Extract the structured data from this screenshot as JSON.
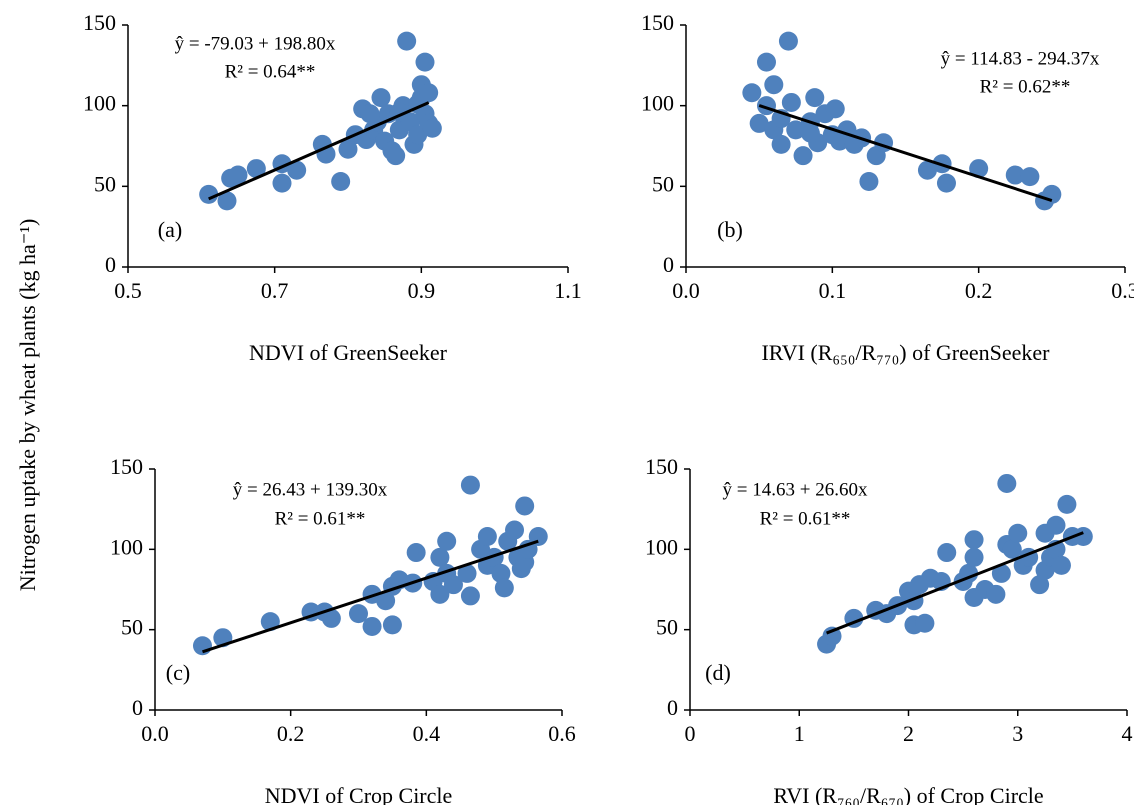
{
  "ylabel": "Nitrogen uptake by wheat plants (kg ha⁻¹)",
  "chart_data": [
    {
      "type": "scatter",
      "xlabel": "NDVI of GreenSeeker",
      "equation": "ŷ = -79.03 + 198.80x",
      "r2": "R² = 0.64**",
      "panel_label": "(a)",
      "xlim": [
        0.5,
        1.1
      ],
      "ylim": [
        0,
        150
      ],
      "xticks": [
        0.5,
        0.7,
        0.9,
        1.1
      ],
      "yticks": [
        0,
        50,
        100,
        150
      ],
      "color": "#4f81bd",
      "x": [
        0.61,
        0.635,
        0.64,
        0.65,
        0.675,
        0.71,
        0.71,
        0.73,
        0.765,
        0.77,
        0.79,
        0.8,
        0.81,
        0.82,
        0.825,
        0.835,
        0.84,
        0.845,
        0.85,
        0.855,
        0.86,
        0.865,
        0.87,
        0.875,
        0.88,
        0.885,
        0.89,
        0.895,
        0.895,
        0.9,
        0.9,
        0.905,
        0.905,
        0.91,
        0.91,
        0.915,
        0.87,
        0.83
      ],
      "y": [
        45,
        41,
        55,
        57,
        61,
        52,
        64,
        60,
        76,
        70,
        53,
        73,
        82,
        98,
        79,
        85,
        90,
        105,
        78,
        95,
        72,
        69,
        85,
        100,
        140,
        90,
        76,
        82,
        101,
        113,
        105,
        127,
        95,
        89,
        108,
        86,
        96,
        95
      ],
      "trend": {
        "x": [
          0.61,
          0.91
        ],
        "y": [
          42.2,
          101.9
        ]
      }
    },
    {
      "type": "scatter",
      "xlabel": "IRVI (R₆₅₀/R₇₇₀) of GreenSeeker",
      "equation": "ŷ = 114.83 - 294.37x",
      "r2": "R² = 0.62**",
      "panel_label": "(b)",
      "xlim": [
        0,
        0.3
      ],
      "ylim": [
        0,
        150
      ],
      "xticks": [
        {
          "value": 0,
          "label": "0.0"
        },
        0.1,
        0.2,
        0.3
      ],
      "yticks": [
        0,
        50,
        100,
        150
      ],
      "color": "#4f81bd",
      "x": [
        0.045,
        0.05,
        0.055,
        0.055,
        0.06,
        0.06,
        0.065,
        0.07,
        0.072,
        0.075,
        0.08,
        0.085,
        0.088,
        0.09,
        0.095,
        0.1,
        0.102,
        0.105,
        0.11,
        0.115,
        0.12,
        0.125,
        0.13,
        0.135,
        0.165,
        0.175,
        0.178,
        0.2,
        0.225,
        0.235,
        0.245,
        0.25,
        0.065,
        0.085
      ],
      "y": [
        108,
        89,
        127,
        100,
        113,
        85,
        76,
        140,
        102,
        85,
        69,
        90,
        105,
        77,
        95,
        82,
        98,
        78,
        85,
        76,
        80,
        53,
        69,
        77,
        60,
        64,
        52,
        61,
        57,
        56,
        41,
        45,
        92,
        83
      ],
      "trend": {
        "x": [
          0.05,
          0.25
        ],
        "y": [
          100.1,
          41.2
        ]
      }
    },
    {
      "type": "scatter",
      "xlabel": "NDVI of Crop Circle",
      "equation": "ŷ = 26.43 + 139.30x",
      "r2": "R² = 0.61**",
      "panel_label": "(c)",
      "xlim": [
        0,
        0.6
      ],
      "ylim": [
        0,
        150
      ],
      "xticks": [
        {
          "value": 0,
          "label": "0.0"
        },
        0.2,
        0.4,
        0.6
      ],
      "yticks": [
        0,
        50,
        100,
        150
      ],
      "color": "#4f81bd",
      "x": [
        0.07,
        0.1,
        0.17,
        0.23,
        0.25,
        0.26,
        0.3,
        0.32,
        0.32,
        0.34,
        0.35,
        0.35,
        0.36,
        0.38,
        0.385,
        0.41,
        0.42,
        0.42,
        0.43,
        0.43,
        0.44,
        0.46,
        0.465,
        0.465,
        0.48,
        0.49,
        0.49,
        0.5,
        0.51,
        0.515,
        0.52,
        0.53,
        0.535,
        0.54,
        0.545,
        0.545,
        0.565,
        0.55
      ],
      "y": [
        40,
        45,
        55,
        61,
        61,
        57,
        60,
        72,
        52,
        68,
        53,
        77,
        81,
        79,
        98,
        80,
        95,
        72,
        105,
        85,
        78,
        85,
        140,
        71,
        100,
        108,
        90,
        95,
        85,
        76,
        105,
        112,
        95,
        88,
        127,
        92,
        108,
        100
      ],
      "trend": {
        "x": [
          0.07,
          0.565
        ],
        "y": [
          36.2,
          105.1
        ]
      }
    },
    {
      "type": "scatter",
      "xlabel": "RVI (R₇₆₀/R₆₇₀) of Crop Circle",
      "equation": "ŷ = 14.63 + 26.60x",
      "r2": "R² = 0.61**",
      "panel_label": "(d)",
      "xlim": [
        0,
        4
      ],
      "ylim": [
        0,
        150
      ],
      "xticks": [
        0,
        1,
        2,
        3,
        4
      ],
      "yticks": [
        0,
        50,
        100,
        150
      ],
      "color": "#4f81bd",
      "x": [
        1.25,
        1.3,
        1.5,
        1.7,
        1.8,
        1.9,
        2.0,
        2.05,
        2.05,
        2.1,
        2.15,
        2.2,
        2.3,
        2.35,
        2.5,
        2.55,
        2.6,
        2.6,
        2.6,
        2.7,
        2.8,
        2.85,
        2.9,
        2.9,
        2.95,
        3.0,
        3.05,
        3.2,
        3.25,
        3.25,
        3.3,
        3.35,
        3.35,
        3.4,
        3.45,
        3.5,
        3.6,
        3.1
      ],
      "y": [
        41,
        46,
        57,
        62,
        60,
        65,
        74,
        53,
        68,
        78,
        54,
        82,
        80,
        98,
        80,
        85,
        106,
        95,
        70,
        75,
        72,
        85,
        141,
        103,
        100,
        110,
        90,
        78,
        110,
        87,
        95,
        115,
        100,
        90,
        128,
        108,
        108,
        95
      ],
      "trend": {
        "x": [
          1.25,
          3.6
        ],
        "y": [
          47.9,
          110.4
        ]
      }
    }
  ]
}
